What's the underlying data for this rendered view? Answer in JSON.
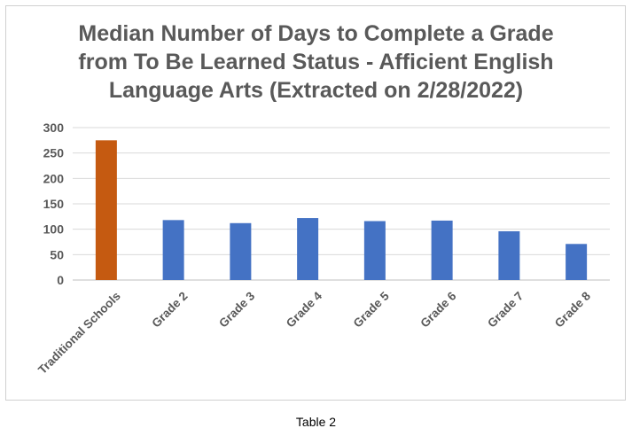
{
  "chart_data": {
    "type": "bar",
    "title_lines": [
      "Median Number of Days to Complete a Grade",
      "from To Be Learned Status - Afficient English",
      "Language Arts (Extracted on 2/28/2022)"
    ],
    "categories": [
      "Traditional Schools",
      "Grade 2",
      "Grade 3",
      "Grade 4",
      "Grade 5",
      "Grade 6",
      "Grade 7",
      "Grade 8"
    ],
    "values": [
      275,
      118,
      112,
      122,
      116,
      117,
      96,
      71
    ],
    "bar_colors": [
      "#C55A11",
      "#4472C4",
      "#4472C4",
      "#4472C4",
      "#4472C4",
      "#4472C4",
      "#4472C4",
      "#4472C4"
    ],
    "ylim": [
      0,
      300
    ],
    "yticks": [
      0,
      50,
      100,
      150,
      200,
      250,
      300
    ],
    "grid": true,
    "legend": "none",
    "xlabel": "",
    "ylabel": ""
  },
  "caption": "Table 2"
}
